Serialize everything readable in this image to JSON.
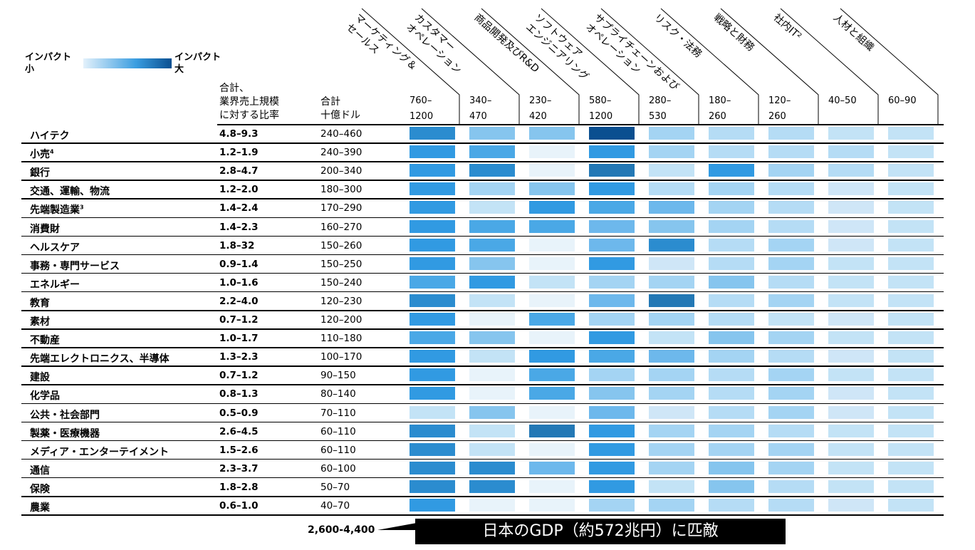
{
  "legend": {
    "low": "インパクト\n小",
    "low_l1": "インパクト",
    "low_l2": "小",
    "high_l1": "インパクト",
    "high_l2": "大",
    "gradient_from": "#e3f1fb",
    "gradient_mid": "#3a9de0",
    "gradient_to": "#0a4f90"
  },
  "headers": {
    "ratio_l1": "合計、",
    "ratio_l2": "業界売上規模",
    "ratio_l3": "に対する比率",
    "total_l1": "合計",
    "total_l2": "十億ドル"
  },
  "footer": {
    "sum": "2,600-4,400",
    "callout": "日本のGDP（約572兆円）に匹敵"
  },
  "chart_data": {
    "type": "heatmap",
    "title": "",
    "columns": [
      {
        "l1": "マーケティング＆",
        "l2": "セールス",
        "total_l1": "760–",
        "total_l2": "1200"
      },
      {
        "l1": "カスタマー",
        "l2": "オペレーション",
        "total_l1": "340–",
        "total_l2": "470"
      },
      {
        "l1": "商品開発及びR&D",
        "l2": "",
        "total_l1": "230–",
        "total_l2": "420"
      },
      {
        "l1": "ソフトウェア",
        "l2": "エンジニアリング",
        "total_l1": "580–",
        "total_l2": "1200"
      },
      {
        "l1": "サプライチェーンおよび",
        "l2": "オペレーション",
        "total_l1": "280–",
        "total_l2": "530"
      },
      {
        "l1": "リスク・法務",
        "l2": "",
        "total_l1": "180–",
        "total_l2": "260"
      },
      {
        "l1": "戦略と財務",
        "l2": "",
        "total_l1": "120–",
        "total_l2": "260"
      },
      {
        "l1": "社内IT²",
        "l2": "",
        "total_l1": "40–50",
        "total_l2": ""
      },
      {
        "l1": "人材と組織",
        "l2": "",
        "total_l1": "60–90",
        "total_l2": ""
      }
    ],
    "scale": "impact level 0 (small) – 11 (large)",
    "palette": [
      "#e8f3fa",
      "#cfe6f7",
      "#c3e3f6",
      "#b5dcf5",
      "#a4d4f3",
      "#86c5ee",
      "#6db8ec",
      "#4aa8e6",
      "#319ae2",
      "#2b8ccf",
      "#2378b5",
      "#0a4f90"
    ],
    "rows": [
      {
        "label": "ハイテク",
        "sup": "",
        "ratio": "4.8–9.3",
        "total": "240–460",
        "values": [
          9,
          5,
          5,
          11,
          4,
          3,
          3,
          2,
          2
        ]
      },
      {
        "label": "小売",
        "sup": "4",
        "ratio": "1.2–1.9",
        "total": "240–390",
        "values": [
          8,
          7,
          0,
          8,
          4,
          3,
          3,
          3,
          2
        ]
      },
      {
        "label": "銀行",
        "sup": "",
        "ratio": "2.8–4.7",
        "total": "200–340",
        "values": [
          8,
          9,
          0,
          10,
          2,
          8,
          4,
          3,
          2
        ]
      },
      {
        "label": "交通、運輸、物流",
        "sup": "",
        "ratio": "1.2–2.0",
        "total": "180–300",
        "values": [
          8,
          4,
          5,
          8,
          3,
          4,
          3,
          1,
          2
        ]
      },
      {
        "label": "先端製造業",
        "sup": "3",
        "ratio": "1.4–2.4",
        "total": "170–290",
        "values": [
          8,
          2,
          8,
          7,
          6,
          4,
          3,
          1,
          2
        ]
      },
      {
        "label": "消費財",
        "sup": "",
        "ratio": "1.4–2.3",
        "total": "160–270",
        "values": [
          8,
          7,
          7,
          6,
          5,
          4,
          3,
          1,
          2
        ]
      },
      {
        "label": "ヘルスケア",
        "sup": "",
        "ratio": "1.8–32",
        "total": "150–260",
        "values": [
          8,
          7,
          0,
          6,
          9,
          3,
          4,
          1,
          2
        ]
      },
      {
        "label": "事務・専門サービス",
        "sup": "",
        "ratio": "0.9–1.4",
        "total": "150–250",
        "values": [
          8,
          5,
          0,
          8,
          1,
          3,
          4,
          2,
          2
        ]
      },
      {
        "label": "エネルギー",
        "sup": "",
        "ratio": "1.0–1.6",
        "total": "150–240",
        "values": [
          7,
          8,
          2,
          4,
          4,
          5,
          3,
          2,
          2
        ]
      },
      {
        "label": "教育",
        "sup": "",
        "ratio": "2.2–4.0",
        "total": "120–230",
        "values": [
          9,
          2,
          0,
          6,
          10,
          3,
          4,
          2,
          2
        ]
      },
      {
        "label": "素材",
        "sup": "",
        "ratio": "0.7–1.2",
        "total": "120–200",
        "values": [
          8,
          0,
          7,
          4,
          4,
          3,
          2,
          1,
          2
        ]
      },
      {
        "label": "不動産",
        "sup": "",
        "ratio": "1.0–1.7",
        "total": "110–180",
        "values": [
          7,
          5,
          0,
          8,
          2,
          5,
          4,
          2,
          2
        ]
      },
      {
        "label": "先端エレクトロニクス、半導体",
        "sup": "",
        "ratio": "1.3–2.3",
        "total": "100–170",
        "values": [
          8,
          2,
          8,
          7,
          6,
          4,
          3,
          1,
          2
        ]
      },
      {
        "label": "建設",
        "sup": "",
        "ratio": "0.7–1.2",
        "total": "90–150",
        "values": [
          8,
          0,
          7,
          4,
          4,
          3,
          4,
          2,
          2
        ]
      },
      {
        "label": "化学品",
        "sup": "",
        "ratio": "0.8–1.3",
        "total": "80–140",
        "values": [
          8,
          0,
          7,
          5,
          4,
          3,
          4,
          1,
          2
        ]
      },
      {
        "label": "公共・社会部門",
        "sup": "",
        "ratio": "0.5–0.9",
        "total": "70–110",
        "values": [
          2,
          5,
          0,
          6,
          1,
          3,
          4,
          1,
          2
        ]
      },
      {
        "label": "製薬・医療機器",
        "sup": "",
        "ratio": "2.6–4.5",
        "total": "60–110",
        "values": [
          9,
          2,
          10,
          8,
          4,
          4,
          3,
          2,
          2
        ]
      },
      {
        "label": "メディア・エンターテイメント",
        "sup": "",
        "ratio": "1.5–2.6",
        "total": "60–110",
        "values": [
          9,
          2,
          0,
          8,
          4,
          4,
          4,
          2,
          2
        ]
      },
      {
        "label": "通信",
        "sup": "",
        "ratio": "2.3–3.7",
        "total": "60–100",
        "values": [
          9,
          9,
          6,
          8,
          4,
          5,
          4,
          2,
          2
        ]
      },
      {
        "label": "保険",
        "sup": "",
        "ratio": "1.8–2.8",
        "total": "50–70",
        "values": [
          9,
          9,
          0,
          8,
          2,
          5,
          3,
          2,
          2
        ]
      },
      {
        "label": "農業",
        "sup": "",
        "ratio": "0.6–1.0",
        "total": "40–70",
        "values": [
          8,
          0,
          0,
          4,
          4,
          3,
          3,
          1,
          2
        ]
      }
    ]
  }
}
